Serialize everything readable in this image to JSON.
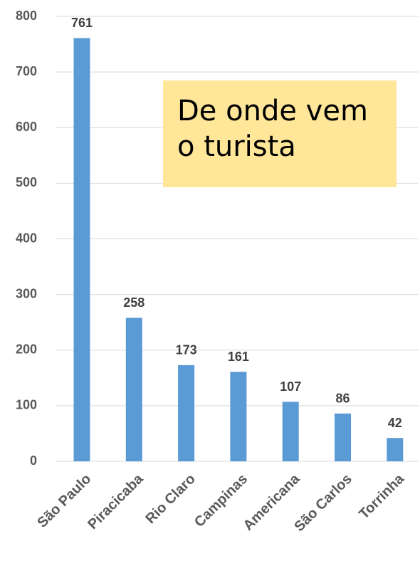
{
  "chart_data": {
    "type": "bar",
    "title": "De onde vem o turista",
    "categories": [
      "São Paulo",
      "Piracicaba",
      "Rio Claro",
      "Campinas",
      "Americana",
      "São Carlos",
      "Torrinha"
    ],
    "values": [
      761,
      258,
      173,
      161,
      107,
      86,
      42
    ],
    "color": "#5B9BD5",
    "ylim": [
      0,
      800
    ],
    "yticks": [
      0,
      100,
      200,
      300,
      400,
      500,
      600,
      700,
      800
    ],
    "grid": true
  }
}
